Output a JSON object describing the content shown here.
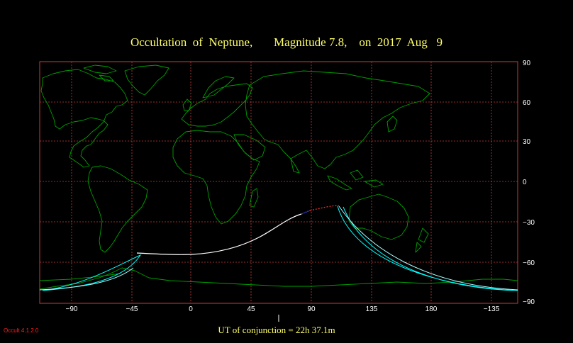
{
  "title": "Occultation  of  Neptune,       Magnitude 7.8,    on  2017  Aug   9",
  "lat_labels": [
    "90",
    "60",
    "30",
    "0",
    "−30",
    "−60",
    "−90"
  ],
  "lon_labels": [
    "−90",
    "−45",
    "0",
    "45",
    "90",
    "135",
    "180",
    "−135"
  ],
  "conjunction_text": "UT of conjunction = 22h 37.1m",
  "version": "Occult 4.1.2.0",
  "colors": {
    "background": "#000000",
    "grid": "#c83c3c",
    "coastline": "#00a000",
    "central_line": "#ffffff",
    "limits": "#00ffff",
    "title": "#ffff66"
  }
}
